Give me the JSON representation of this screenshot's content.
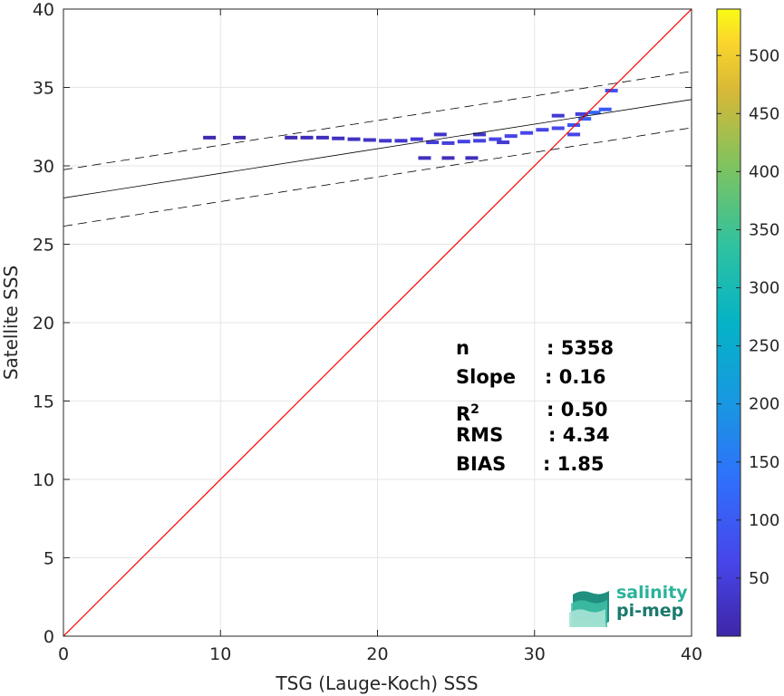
{
  "chart_data": {
    "type": "scatter",
    "subtype": "2d-density-histogram",
    "xlabel": "TSG (Lauge-Koch) SSS",
    "ylabel": "Satellite SSS",
    "xlim": [
      0,
      40
    ],
    "ylim": [
      0,
      40
    ],
    "xticks": [
      0,
      10,
      20,
      30,
      40
    ],
    "yticks": [
      0,
      5,
      10,
      15,
      20,
      25,
      30,
      35,
      40
    ],
    "grid": true,
    "colorbar": {
      "min": 0,
      "max": 540,
      "ticks": [
        50,
        100,
        150,
        200,
        250,
        300,
        350,
        400,
        450,
        500
      ],
      "colormap": "parula"
    },
    "identity_line": {
      "x": [
        0,
        40
      ],
      "y": [
        0,
        40
      ],
      "color": "#ff0000"
    },
    "fit_line": {
      "intercept": 27.95,
      "slope": 0.157,
      "color": "#000000",
      "style": "solid"
    },
    "bound_lines": [
      {
        "intercept": 29.75,
        "slope": 0.157,
        "style": "dashed"
      },
      {
        "intercept": 26.15,
        "slope": 0.157,
        "style": "dashed"
      }
    ],
    "density_points": [
      {
        "x": 9.3,
        "y": 31.8,
        "c": 8
      },
      {
        "x": 11.2,
        "y": 31.8,
        "c": 6
      },
      {
        "x": 14.5,
        "y": 31.8,
        "c": 12
      },
      {
        "x": 15.5,
        "y": 31.8,
        "c": 15
      },
      {
        "x": 16.5,
        "y": 31.8,
        "c": 18
      },
      {
        "x": 17.5,
        "y": 31.75,
        "c": 22
      },
      {
        "x": 18.5,
        "y": 31.7,
        "c": 25
      },
      {
        "x": 19.5,
        "y": 31.65,
        "c": 30
      },
      {
        "x": 20.5,
        "y": 31.6,
        "c": 35
      },
      {
        "x": 21.5,
        "y": 31.6,
        "c": 35
      },
      {
        "x": 22.5,
        "y": 31.7,
        "c": 40
      },
      {
        "x": 23.5,
        "y": 31.5,
        "c": 45
      },
      {
        "x": 24.5,
        "y": 31.45,
        "c": 50
      },
      {
        "x": 25.5,
        "y": 31.55,
        "c": 55
      },
      {
        "x": 26.5,
        "y": 31.6,
        "c": 55
      },
      {
        "x": 27.5,
        "y": 31.7,
        "c": 60
      },
      {
        "x": 28.5,
        "y": 31.9,
        "c": 60
      },
      {
        "x": 29.5,
        "y": 32.1,
        "c": 65
      },
      {
        "x": 30.5,
        "y": 32.3,
        "c": 60
      },
      {
        "x": 31.5,
        "y": 32.4,
        "c": 70
      },
      {
        "x": 32.5,
        "y": 32.6,
        "c": 90
      },
      {
        "x": 33.2,
        "y": 33.0,
        "c": 110
      },
      {
        "x": 33.8,
        "y": 33.4,
        "c": 120
      },
      {
        "x": 34.5,
        "y": 33.6,
        "c": 100
      },
      {
        "x": 34.9,
        "y": 34.8,
        "c": 80
      },
      {
        "x": 23.0,
        "y": 30.5,
        "c": 20
      },
      {
        "x": 24.5,
        "y": 30.5,
        "c": 20
      },
      {
        "x": 26.0,
        "y": 30.5,
        "c": 18
      },
      {
        "x": 24.0,
        "y": 32.0,
        "c": 30
      },
      {
        "x": 26.5,
        "y": 32.0,
        "c": 30
      },
      {
        "x": 32.5,
        "y": 32.0,
        "c": 60
      },
      {
        "x": 31.5,
        "y": 33.2,
        "c": 40
      },
      {
        "x": 33.0,
        "y": 33.3,
        "c": 50
      },
      {
        "x": 28.0,
        "y": 31.5,
        "c": 40
      }
    ]
  },
  "stats": {
    "n_label": "n",
    "n_value": ": 5358",
    "slope_label": "Slope",
    "slope_value": ": 0.16",
    "r2_label": "R",
    "r2_sup": "2",
    "r2_value": ": 0.50",
    "rms_label": "RMS",
    "rms_value": ": 4.34",
    "bias_label": "BIAS",
    "bias_value": ": 1.85"
  },
  "logo": {
    "line1": "salinity",
    "line2": "pi-mep"
  },
  "colors": {
    "identity": "#ff0000",
    "fit": "#000000",
    "grid": "#e6e6e6",
    "logo_primary": "#2bb39a",
    "logo_secondary": "#1a7a6c"
  }
}
